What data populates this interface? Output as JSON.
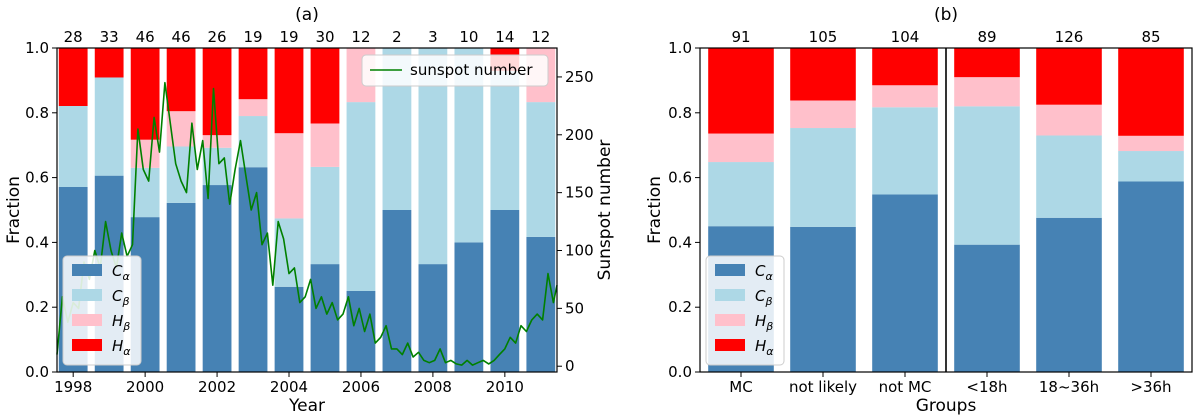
{
  "figure": {
    "colors": {
      "C_alpha": "#4682b4",
      "C_beta": "#add8e6",
      "H_beta": "#ffc0cb",
      "H_alpha": "#ff0000",
      "sunspot": "#008000",
      "axis": "#000000"
    }
  },
  "chart_data": [
    {
      "type": "bar",
      "stacked": true,
      "title": "(a)",
      "xlabel": "Year",
      "ylabel": "Fraction",
      "y2label": "Sunspot number",
      "ylim": [
        0,
        1
      ],
      "y2lim": [
        -5,
        275
      ],
      "xlim": [
        1997.55,
        2011.45
      ],
      "yticks": [
        "0.0",
        "0.2",
        "0.4",
        "0.6",
        "0.8",
        "1.0"
      ],
      "y2ticks": [
        "0",
        "50",
        "100",
        "150",
        "200",
        "250"
      ],
      "xticks": [
        "1998",
        "2000",
        "2002",
        "2004",
        "2006",
        "2008",
        "2010"
      ],
      "categories": [
        1998,
        1999,
        2000,
        2001,
        2002,
        2003,
        2004,
        2005,
        2006,
        2007,
        2008,
        2009,
        2010,
        2011
      ],
      "counts": [
        "28",
        "33",
        "46",
        "46",
        "26",
        "19",
        "19",
        "30",
        "12",
        "2",
        "3",
        "10",
        "14",
        "12"
      ],
      "series": [
        {
          "name": "C_alpha",
          "label_main": "C",
          "label_sub": "α",
          "values": [
            0.571,
            0.606,
            0.478,
            0.522,
            0.577,
            0.632,
            0.263,
            0.333,
            0.25,
            0.5,
            0.333,
            0.4,
            0.5,
            0.417
          ]
        },
        {
          "name": "C_beta",
          "label_main": "C",
          "label_sub": "β",
          "values": [
            0.25,
            0.303,
            0.152,
            0.174,
            0.115,
            0.158,
            0.211,
            0.3,
            0.583,
            0.5,
            0.667,
            0.6,
            0.429,
            0.416
          ]
        },
        {
          "name": "H_beta",
          "label_main": "H",
          "label_sub": "β",
          "values": [
            0.0,
            0.0,
            0.087,
            0.109,
            0.039,
            0.052,
            0.263,
            0.134,
            0.167,
            0.0,
            0.0,
            0.0,
            0.0,
            0.167
          ]
        },
        {
          "name": "H_alpha",
          "label_main": "H",
          "label_sub": "α",
          "values": [
            0.179,
            0.091,
            0.283,
            0.195,
            0.269,
            0.158,
            0.263,
            0.233,
            0.0,
            0.0,
            0.0,
            0.0,
            0.071,
            0.0
          ]
        }
      ],
      "line_series": {
        "name": "sunspot number",
        "x": [
          1997.55,
          1997.7,
          1997.85,
          1998.0,
          1998.15,
          1998.3,
          1998.45,
          1998.6,
          1998.75,
          1998.9,
          1999.05,
          1999.2,
          1999.35,
          1999.5,
          1999.65,
          1999.8,
          1999.95,
          2000.1,
          2000.25,
          2000.4,
          2000.55,
          2000.7,
          2000.85,
          2001.0,
          2001.15,
          2001.3,
          2001.45,
          2001.6,
          2001.75,
          2001.9,
          2002.05,
          2002.2,
          2002.35,
          2002.5,
          2002.65,
          2002.8,
          2002.95,
          2003.1,
          2003.25,
          2003.4,
          2003.55,
          2003.7,
          2003.85,
          2004.0,
          2004.15,
          2004.3,
          2004.45,
          2004.6,
          2004.75,
          2004.9,
          2005.05,
          2005.2,
          2005.35,
          2005.5,
          2005.65,
          2005.8,
          2005.95,
          2006.1,
          2006.25,
          2006.4,
          2006.55,
          2006.7,
          2006.85,
          2007.0,
          2007.15,
          2007.3,
          2007.45,
          2007.6,
          2007.75,
          2007.9,
          2008.05,
          2008.2,
          2008.35,
          2008.5,
          2008.65,
          2008.8,
          2008.95,
          2009.1,
          2009.25,
          2009.4,
          2009.55,
          2009.7,
          2009.85,
          2010.0,
          2010.15,
          2010.3,
          2010.45,
          2010.6,
          2010.75,
          2010.9,
          2011.05,
          2011.2,
          2011.35,
          2011.45
        ],
        "values": [
          10,
          60,
          38,
          55,
          50,
          90,
          75,
          100,
          85,
          125,
          100,
          85,
          115,
          95,
          105,
          205,
          170,
          160,
          215,
          185,
          245,
          210,
          175,
          160,
          150,
          210,
          170,
          195,
          145,
          240,
          175,
          180,
          140,
          170,
          195,
          165,
          135,
          150,
          105,
          115,
          70,
          125,
          110,
          80,
          85,
          55,
          60,
          75,
          50,
          60,
          45,
          55,
          40,
          45,
          60,
          35,
          50,
          30,
          45,
          20,
          25,
          35,
          15,
          15,
          10,
          20,
          8,
          12,
          5,
          3,
          5,
          15,
          3,
          5,
          2,
          1,
          5,
          1,
          3,
          5,
          2,
          5,
          10,
          15,
          25,
          20,
          35,
          30,
          40,
          45,
          40,
          80,
          55,
          70
        ]
      },
      "legend": {
        "location": "lower-left"
      },
      "legend2": {
        "location": "upper-right"
      }
    },
    {
      "type": "bar",
      "stacked": true,
      "title": "(b)",
      "xlabel": "Groups",
      "ylabel": "Fraction",
      "ylim": [
        0,
        1
      ],
      "yticks": [
        "0.0",
        "0.2",
        "0.4",
        "0.6",
        "0.8",
        "1.0"
      ],
      "categories": [
        "MC",
        "not likely",
        "not MC",
        "<18h",
        "18~36h",
        ">36h"
      ],
      "counts": [
        "91",
        "105",
        "104",
        "89",
        "126",
        "85"
      ],
      "divider_after_index": 2,
      "series": [
        {
          "name": "C_alpha",
          "label_main": "C",
          "label_sub": "α",
          "values": [
            0.45,
            0.448,
            0.548,
            0.393,
            0.476,
            0.588
          ]
        },
        {
          "name": "C_beta",
          "label_main": "C",
          "label_sub": "β",
          "values": [
            0.198,
            0.305,
            0.269,
            0.427,
            0.254,
            0.094
          ]
        },
        {
          "name": "H_beta",
          "label_main": "H",
          "label_sub": "β",
          "values": [
            0.088,
            0.085,
            0.068,
            0.09,
            0.095,
            0.047
          ]
        },
        {
          "name": "H_alpha",
          "label_main": "H",
          "label_sub": "α",
          "values": [
            0.264,
            0.162,
            0.115,
            0.09,
            0.175,
            0.271
          ]
        }
      ],
      "legend": {
        "location": "lower-left"
      }
    }
  ]
}
